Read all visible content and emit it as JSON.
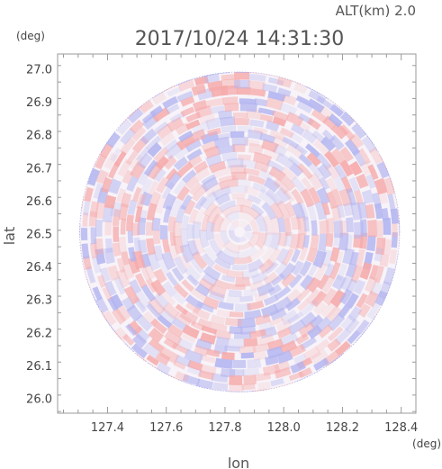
{
  "chart_data": {
    "type": "heatmap",
    "title": "2017/10/24 14:31:30",
    "subtitle": "ALT(km) 2.0",
    "xlabel": "lon",
    "ylabel": "lat",
    "x_unit": "(deg)",
    "y_unit": "(deg)",
    "xlim": [
      127.23,
      128.45
    ],
    "ylim": [
      25.955,
      27.045
    ],
    "x_ticks": [
      "127.4",
      "127.6",
      "127.8",
      "128.0",
      "128.2",
      "128.4"
    ],
    "y_ticks": [
      "26.0",
      "26.1",
      "26.2",
      "26.3",
      "26.4",
      "26.5",
      "26.6",
      "26.7",
      "26.8",
      "26.9",
      "27.0"
    ],
    "x_tick_values": [
      127.4,
      127.6,
      127.8,
      128.0,
      128.2,
      128.4
    ],
    "y_tick_values": [
      26.0,
      26.1,
      26.2,
      26.3,
      26.4,
      26.5,
      26.6,
      26.7,
      26.8,
      26.9,
      27.0
    ],
    "center": [
      127.85,
      26.505
    ],
    "radius_deg": 0.545,
    "grid": false,
    "colors": {
      "positive": "#f6b3b3",
      "negative": "#b9baf3",
      "neutral": "#ffffff",
      "axis": "#999999"
    }
  }
}
